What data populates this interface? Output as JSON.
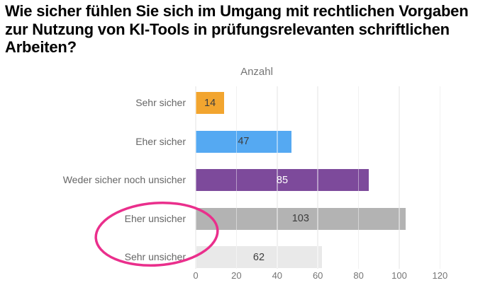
{
  "page": {
    "title": "Wie sicher fühlen Sie sich im Umgang mit rechtlichen Vorgaben zur Nutzung von KI-Tools in prüfungsrelevanten schriftlichen Arbeiten?"
  },
  "chart_data": {
    "type": "bar",
    "orientation": "horizontal",
    "title": "Anzahl",
    "categories": [
      "Sehr sicher",
      "Eher sicher",
      "Weder sicher noch unsicher",
      "Eher unsicher",
      "Sehr unsicher"
    ],
    "values": [
      14,
      47,
      85,
      103,
      62
    ],
    "bar_colors": [
      "#F2A52F",
      "#55A9F2",
      "#7D4A9B",
      "#B3B3B3",
      "#E9E9E9"
    ],
    "value_label_colors": [
      "#3D3D3D",
      "#3D3D3D",
      "#FFFFFF",
      "#3D3D3D",
      "#3D3D3D"
    ],
    "xlabel": "",
    "ylabel": "",
    "xlim": [
      0,
      120
    ],
    "xticks": [
      0,
      20,
      40,
      60,
      80,
      100,
      120
    ],
    "grid": true,
    "legend": "none",
    "annotation": {
      "shape": "ellipse",
      "description": "hand-drawn pink ellipse circling the labels Eher unsicher and Sehr unsicher",
      "highlights": [
        "Eher unsicher",
        "Sehr unsicher"
      ],
      "color": "#EA2F8C"
    }
  },
  "colors": {
    "background": "#FFFFFF",
    "grid": "#E6E6E6",
    "axis_text": "#757575",
    "category_text": "#666666",
    "chart_title_text": "#757575",
    "page_title_text": "#000000"
  }
}
